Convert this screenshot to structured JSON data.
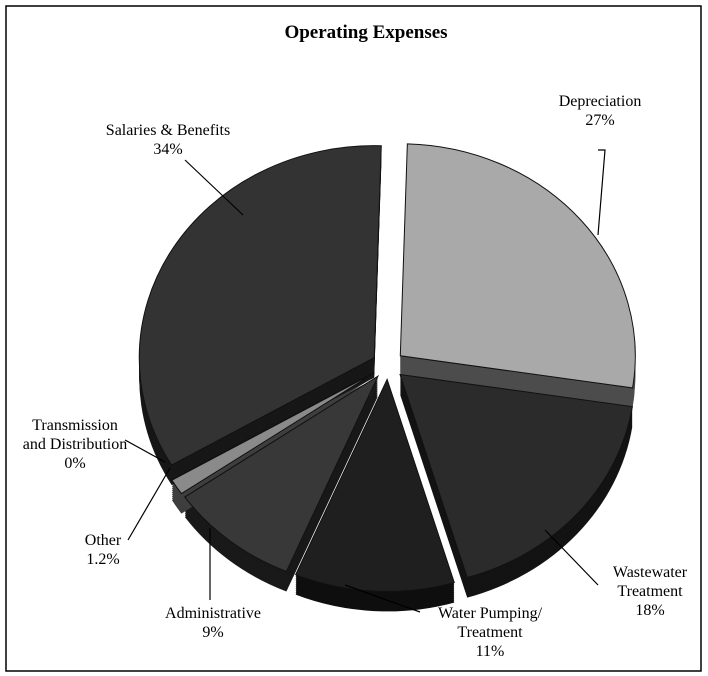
{
  "chart_data": {
    "type": "pie",
    "title": "Operating Expenses",
    "categories": [
      "Depreciation",
      "Wastewater Treatment",
      "Water Pumping/ Treatment",
      "Administrative",
      "Other",
      "Transmission and Distribution",
      "Salaries & Benefits"
    ],
    "values": [
      27,
      18,
      11,
      9,
      1.2,
      0,
      34
    ],
    "value_labels": [
      "27%",
      "18%",
      "11%",
      "9%",
      "1.2%",
      "0%",
      "34%"
    ],
    "colors": [
      "#a9a9a9",
      "#2b2b2b",
      "#1f1f1f",
      "#383838",
      "#8a8a8a",
      "#e0e0e0",
      "#333333"
    ]
  }
}
